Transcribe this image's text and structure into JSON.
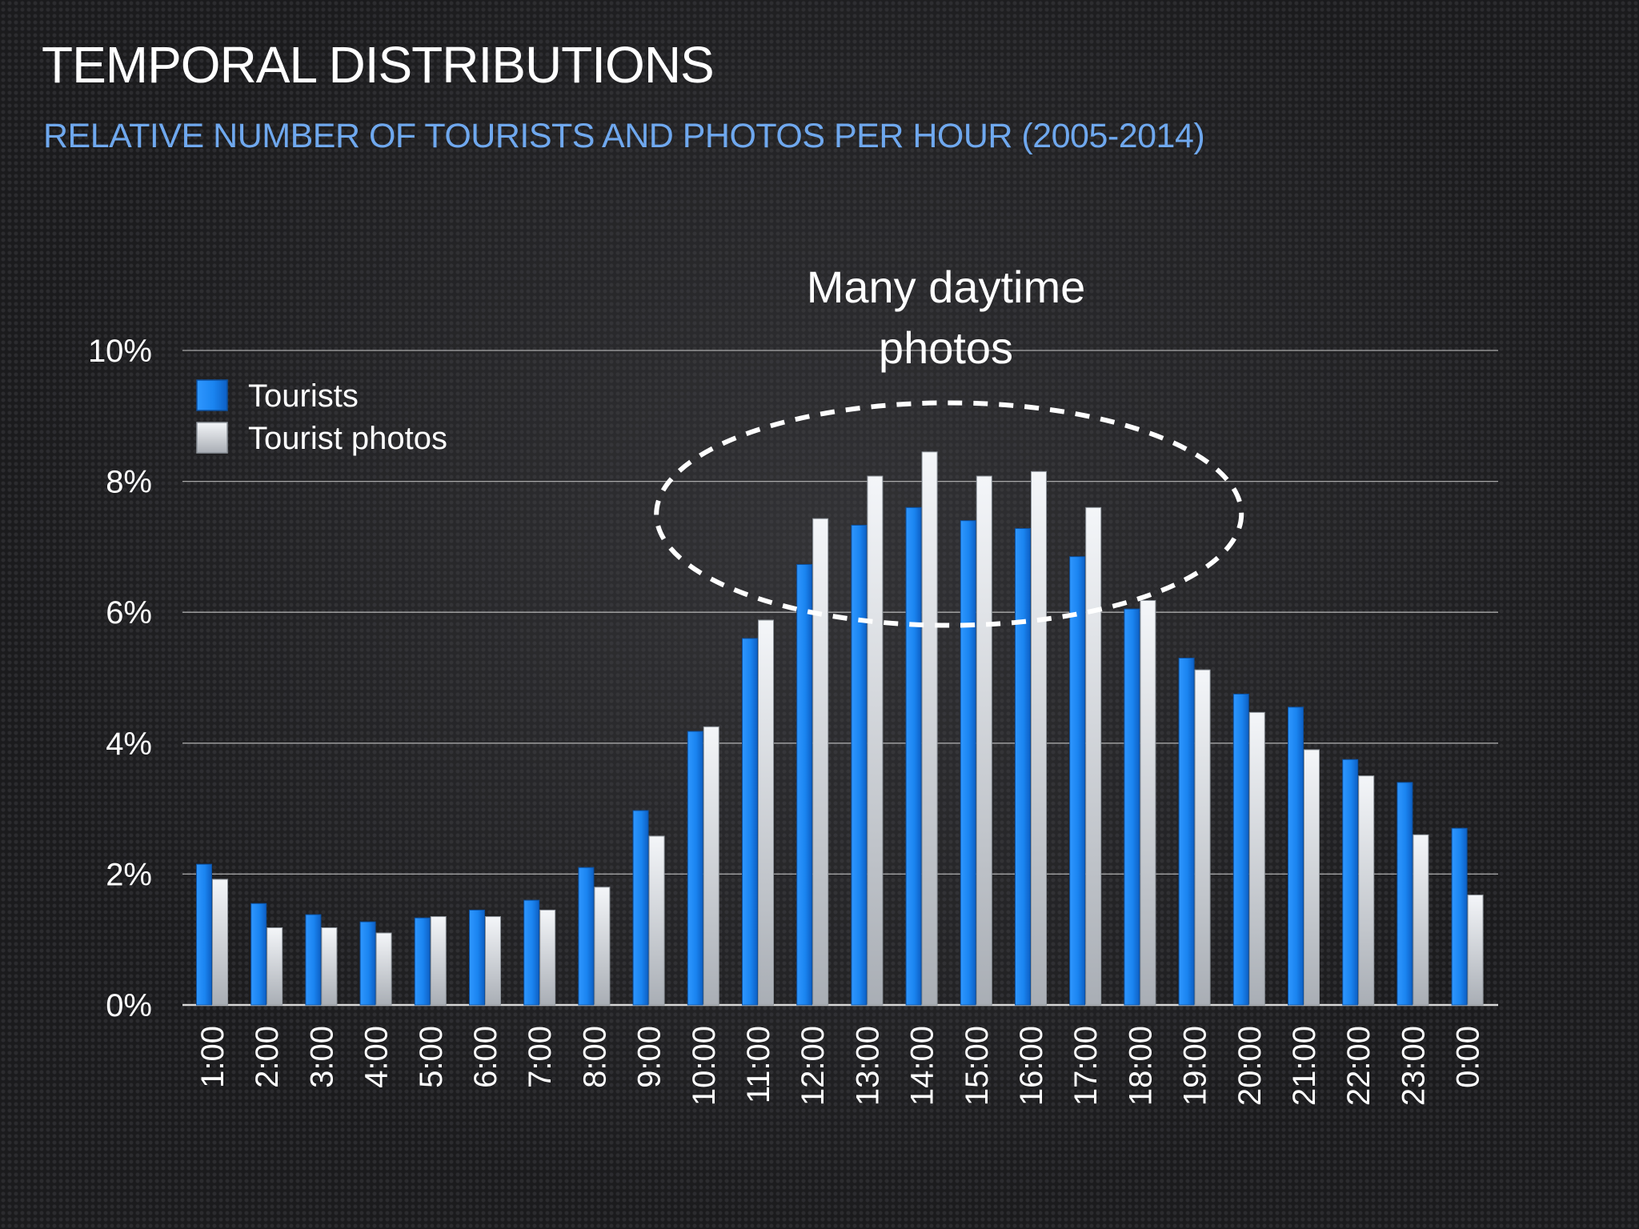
{
  "slide": {
    "title": "TEMPORAL DISTRIBUTIONS",
    "subtitle": "RELATIVE NUMBER OF TOURISTS AND PHOTOS PER HOUR (2005-2014)"
  },
  "colors": {
    "tourists": "#1a84f0",
    "tourist_photos": "#dfe3e8",
    "gridline": "#c8c8c8",
    "subtitle": "#6fa8ee"
  },
  "chart_data": {
    "type": "bar",
    "categories": [
      "1:00",
      "2:00",
      "3:00",
      "4:00",
      "5:00",
      "6:00",
      "7:00",
      "8:00",
      "9:00",
      "10:00",
      "11:00",
      "12:00",
      "13:00",
      "14:00",
      "15:00",
      "16:00",
      "17:00",
      "18:00",
      "19:00",
      "20:00",
      "21:00",
      "22:00",
      "23:00",
      "0:00"
    ],
    "series": [
      {
        "name": "Tourists",
        "values": [
          2.15,
          1.55,
          1.38,
          1.27,
          1.33,
          1.45,
          1.6,
          2.1,
          2.97,
          4.18,
          5.6,
          6.73,
          7.33,
          7.6,
          7.4,
          7.28,
          6.85,
          6.05,
          5.3,
          4.75,
          4.55,
          3.75,
          3.4,
          2.7
        ]
      },
      {
        "name": "Tourist photos",
        "values": [
          1.92,
          1.18,
          1.18,
          1.1,
          1.35,
          1.35,
          1.45,
          1.8,
          2.58,
          4.25,
          5.88,
          7.43,
          8.08,
          8.45,
          8.08,
          8.15,
          7.6,
          6.18,
          5.12,
          4.47,
          3.9,
          3.5,
          2.6,
          1.68
        ]
      }
    ],
    "y_ticks": [
      "0%",
      "2%",
      "4%",
      "6%",
      "8%",
      "10%"
    ],
    "ylim": [
      0,
      10
    ],
    "grid": true,
    "legend_position": "top-left",
    "annotation": {
      "lines": [
        "Many daytime",
        "photos"
      ],
      "from_category": "12:00",
      "to_category": "17:00",
      "y_range": [
        5.8,
        9.2
      ]
    }
  }
}
